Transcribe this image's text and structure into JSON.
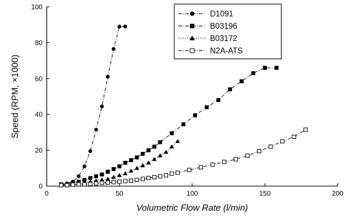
{
  "chart_data": {
    "type": "line",
    "title": "",
    "xlabel": "Volumetric Flow Rate (l/min)",
    "ylabel": "Speed (RPM, ×1000)",
    "xlim": [
      0,
      200
    ],
    "ylim": [
      0,
      100
    ],
    "xticks": [
      0,
      50,
      100,
      150,
      200
    ],
    "yticks": [
      0,
      20,
      40,
      60,
      80,
      100
    ],
    "grid": false,
    "legend_position": "top-right",
    "series": [
      {
        "name": "D1091",
        "marker": "filled-circle",
        "dash": "dash-dot",
        "x": [
          10,
          14,
          18,
          22,
          26,
          30,
          34,
          38,
          42,
          46,
          50,
          54
        ],
        "y": [
          1,
          1.5,
          2.5,
          5.5,
          11,
          19.5,
          31.5,
          44.5,
          61,
          76.5,
          89,
          89
        ]
      },
      {
        "name": "B03196",
        "marker": "filled-square",
        "dash": "dash-dot",
        "x": [
          10,
          14,
          18,
          22,
          26,
          30,
          34,
          38,
          42,
          46,
          50,
          54,
          58,
          62,
          66,
          70,
          74,
          78,
          86,
          94,
          102,
          110,
          118,
          126,
          134,
          142,
          150,
          158
        ],
        "y": [
          1,
          1,
          2,
          2.5,
          3.5,
          4.5,
          5.5,
          6.5,
          8,
          9.5,
          11,
          13,
          14.5,
          16,
          18,
          20,
          22,
          24.5,
          29.5,
          34.5,
          39.5,
          44,
          48,
          54,
          58.5,
          63,
          66,
          66
        ]
      },
      {
        "name": "B03172",
        "marker": "filled-triangle",
        "dash": "dotted",
        "x": [
          10,
          14,
          18,
          22,
          26,
          30,
          34,
          38,
          42,
          46,
          50,
          54,
          58,
          62,
          66,
          70,
          74,
          78,
          82,
          86,
          90
        ],
        "y": [
          0.5,
          1,
          1,
          1.5,
          2,
          2.5,
          3,
          3.5,
          4,
          5,
          6,
          7,
          8.5,
          10,
          11.5,
          13,
          15,
          17,
          19,
          22,
          25
        ]
      },
      {
        "name": "N2A-ATS",
        "marker": "open-square",
        "dash": "dash-dot",
        "x": [
          10,
          14,
          18,
          22,
          26,
          30,
          34,
          38,
          42,
          46,
          50,
          54,
          58,
          62,
          66,
          70,
          74,
          78,
          82,
          86,
          90,
          98,
          106,
          114,
          122,
          130,
          138,
          146,
          154,
          162,
          170,
          178
        ],
        "y": [
          0.5,
          0.5,
          0.8,
          1,
          1,
          1.2,
          1.5,
          1.8,
          2,
          2.2,
          2.5,
          2.8,
          3,
          3.5,
          4,
          4.5,
          5,
          5.5,
          6,
          7,
          7.5,
          9,
          10.5,
          12,
          13.5,
          15,
          17,
          19.5,
          22,
          25,
          27.5,
          31.5
        ]
      }
    ]
  }
}
